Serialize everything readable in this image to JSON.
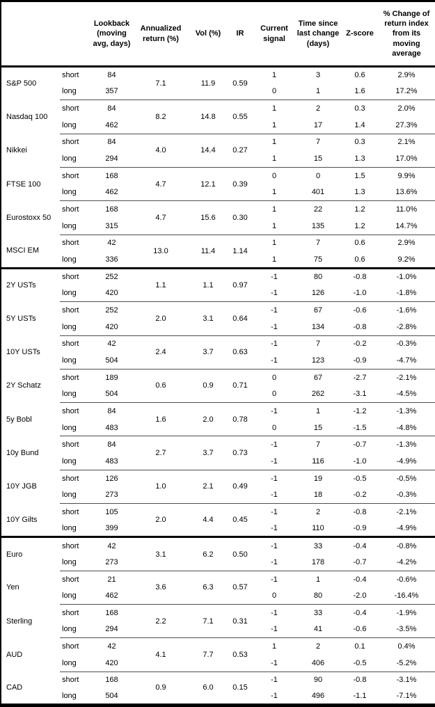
{
  "colors": {
    "text": "#000000",
    "background": "#ffffff",
    "border": "#000000",
    "row_separator": "#4d4d4d"
  },
  "table": {
    "columns": [
      {
        "key": "asset",
        "label": ""
      },
      {
        "key": "horizon",
        "label": ""
      },
      {
        "key": "lookback",
        "label": "Lookback\n(moving\navg, days)"
      },
      {
        "key": "ann_return",
        "label": "Annualized\nreturn (%)"
      },
      {
        "key": "vol",
        "label": "Vol (%)"
      },
      {
        "key": "ir",
        "label": "IR"
      },
      {
        "key": "signal",
        "label": "Current\nsignal"
      },
      {
        "key": "time_since",
        "label": "Time since\nlast change\n(days)"
      },
      {
        "key": "z_score",
        "label": "Z-score"
      },
      {
        "key": "pct_change",
        "label": "% Change of\nreturn index\nfrom its\nmoving\naverage"
      }
    ],
    "sections": [
      {
        "name": "equities",
        "groups": [
          {
            "asset": "S&P 500",
            "ann_return": "7.1",
            "vol": "11.9",
            "ir": "0.59",
            "rows": [
              {
                "horizon": "short",
                "lookback": "84",
                "signal": "1",
                "time_since": "3",
                "z_score": "0.6",
                "pct_change": "2.9%"
              },
              {
                "horizon": "long",
                "lookback": "357",
                "signal": "0",
                "time_since": "1",
                "z_score": "1.6",
                "pct_change": "17.2%"
              }
            ]
          },
          {
            "asset": "Nasdaq 100",
            "ann_return": "8.2",
            "vol": "14.8",
            "ir": "0.55",
            "rows": [
              {
                "horizon": "short",
                "lookback": "84",
                "signal": "1",
                "time_since": "2",
                "z_score": "0.3",
                "pct_change": "2.0%"
              },
              {
                "horizon": "long",
                "lookback": "462",
                "signal": "1",
                "time_since": "17",
                "z_score": "1.4",
                "pct_change": "27.3%"
              }
            ]
          },
          {
            "asset": "Nikkei",
            "ann_return": "4.0",
            "vol": "14.4",
            "ir": "0.27",
            "rows": [
              {
                "horizon": "short",
                "lookback": "84",
                "signal": "1",
                "time_since": "7",
                "z_score": "0.3",
                "pct_change": "2.1%"
              },
              {
                "horizon": "long",
                "lookback": "294",
                "signal": "1",
                "time_since": "15",
                "z_score": "1.3",
                "pct_change": "17.0%"
              }
            ]
          },
          {
            "asset": "FTSE 100",
            "ann_return": "4.7",
            "vol": "12.1",
            "ir": "0.39",
            "rows": [
              {
                "horizon": "short",
                "lookback": "168",
                "signal": "0",
                "time_since": "0",
                "z_score": "1.5",
                "pct_change": "9.9%"
              },
              {
                "horizon": "long",
                "lookback": "462",
                "signal": "1",
                "time_since": "401",
                "z_score": "1.3",
                "pct_change": "13.6%"
              }
            ]
          },
          {
            "asset": "Eurostoxx 50",
            "ann_return": "4.7",
            "vol": "15.6",
            "ir": "0.30",
            "rows": [
              {
                "horizon": "short",
                "lookback": "168",
                "signal": "1",
                "time_since": "22",
                "z_score": "1.2",
                "pct_change": "11.0%"
              },
              {
                "horizon": "long",
                "lookback": "315",
                "signal": "1",
                "time_since": "135",
                "z_score": "1.2",
                "pct_change": "14.7%"
              }
            ]
          },
          {
            "asset": "MSCI EM",
            "ann_return": "13.0",
            "vol": "11.4",
            "ir": "1.14",
            "rows": [
              {
                "horizon": "short",
                "lookback": "42",
                "signal": "1",
                "time_since": "7",
                "z_score": "0.6",
                "pct_change": "2.9%"
              },
              {
                "horizon": "long",
                "lookback": "336",
                "signal": "1",
                "time_since": "75",
                "z_score": "0.6",
                "pct_change": "9.2%"
              }
            ]
          }
        ]
      },
      {
        "name": "bonds",
        "groups": [
          {
            "asset": "2Y USTs",
            "ann_return": "1.1",
            "vol": "1.1",
            "ir": "0.97",
            "rows": [
              {
                "horizon": "short",
                "lookback": "252",
                "signal": "-1",
                "time_since": "80",
                "z_score": "-0.8",
                "pct_change": "-1.0%"
              },
              {
                "horizon": "long",
                "lookback": "420",
                "signal": "-1",
                "time_since": "126",
                "z_score": "-1.0",
                "pct_change": "-1.8%"
              }
            ]
          },
          {
            "asset": "5Y USTs",
            "ann_return": "2.0",
            "vol": "3.1",
            "ir": "0.64",
            "rows": [
              {
                "horizon": "short",
                "lookback": "252",
                "signal": "-1",
                "time_since": "67",
                "z_score": "-0.6",
                "pct_change": "-1.6%"
              },
              {
                "horizon": "long",
                "lookback": "420",
                "signal": "-1",
                "time_since": "134",
                "z_score": "-0.8",
                "pct_change": "-2.8%"
              }
            ]
          },
          {
            "asset": "10Y USTs",
            "ann_return": "2.4",
            "vol": "3.7",
            "ir": "0.63",
            "rows": [
              {
                "horizon": "short",
                "lookback": "42",
                "signal": "-1",
                "time_since": "7",
                "z_score": "-0.2",
                "pct_change": "-0.3%"
              },
              {
                "horizon": "long",
                "lookback": "504",
                "signal": "-1",
                "time_since": "123",
                "z_score": "-0.9",
                "pct_change": "-4.7%"
              }
            ]
          },
          {
            "asset": "2Y Schatz",
            "ann_return": "0.6",
            "vol": "0.9",
            "ir": "0.71",
            "rows": [
              {
                "horizon": "short",
                "lookback": "189",
                "signal": "0",
                "time_since": "67",
                "z_score": "-2.7",
                "pct_change": "-2.1%"
              },
              {
                "horizon": "long",
                "lookback": "504",
                "signal": "0",
                "time_since": "262",
                "z_score": "-3.1",
                "pct_change": "-4.5%"
              }
            ]
          },
          {
            "asset": "5y Bobl",
            "ann_return": "1.6",
            "vol": "2.0",
            "ir": "0.78",
            "rows": [
              {
                "horizon": "short",
                "lookback": "84",
                "signal": "-1",
                "time_since": "1",
                "z_score": "-1.2",
                "pct_change": "-1.3%"
              },
              {
                "horizon": "long",
                "lookback": "483",
                "signal": "0",
                "time_since": "15",
                "z_score": "-1.5",
                "pct_change": "-4.8%"
              }
            ]
          },
          {
            "asset": "10y Bund",
            "ann_return": "2.7",
            "vol": "3.7",
            "ir": "0.73",
            "rows": [
              {
                "horizon": "short",
                "lookback": "84",
                "signal": "-1",
                "time_since": "7",
                "z_score": "-0.7",
                "pct_change": "-1.3%"
              },
              {
                "horizon": "long",
                "lookback": "483",
                "signal": "-1",
                "time_since": "116",
                "z_score": "-1.0",
                "pct_change": "-4.9%"
              }
            ]
          },
          {
            "asset": "10Y JGB",
            "ann_return": "1.0",
            "vol": "2.1",
            "ir": "0.49",
            "rows": [
              {
                "horizon": "short",
                "lookback": "126",
                "signal": "-1",
                "time_since": "19",
                "z_score": "-0.5",
                "pct_change": "-0.5%"
              },
              {
                "horizon": "long",
                "lookback": "273",
                "signal": "-1",
                "time_since": "18",
                "z_score": "-0.2",
                "pct_change": "-0.3%"
              }
            ]
          },
          {
            "asset": "10Y Gilts",
            "ann_return": "2.0",
            "vol": "4.4",
            "ir": "0.45",
            "rows": [
              {
                "horizon": "short",
                "lookback": "105",
                "signal": "-1",
                "time_since": "2",
                "z_score": "-0.8",
                "pct_change": "-2.1%"
              },
              {
                "horizon": "long",
                "lookback": "399",
                "signal": "-1",
                "time_since": "110",
                "z_score": "-0.9",
                "pct_change": "-4.9%"
              }
            ]
          }
        ]
      },
      {
        "name": "currencies",
        "groups": [
          {
            "asset": "Euro",
            "ann_return": "3.1",
            "vol": "6.2",
            "ir": "0.50",
            "rows": [
              {
                "horizon": "short",
                "lookback": "42",
                "signal": "-1",
                "time_since": "33",
                "z_score": "-0.4",
                "pct_change": "-0.8%"
              },
              {
                "horizon": "long",
                "lookback": "273",
                "signal": "-1",
                "time_since": "178",
                "z_score": "-0.7",
                "pct_change": "-4.2%"
              }
            ]
          },
          {
            "asset": "Yen",
            "ann_return": "3.6",
            "vol": "6.3",
            "ir": "0.57",
            "rows": [
              {
                "horizon": "short",
                "lookback": "21",
                "signal": "-1",
                "time_since": "1",
                "z_score": "-0.4",
                "pct_change": "-0.6%"
              },
              {
                "horizon": "long",
                "lookback": "462",
                "signal": "0",
                "time_since": "80",
                "z_score": "-2.0",
                "pct_change": "-16.4%"
              }
            ]
          },
          {
            "asset": "Sterling",
            "ann_return": "2.2",
            "vol": "7.1",
            "ir": "0.31",
            "rows": [
              {
                "horizon": "short",
                "lookback": "168",
                "signal": "-1",
                "time_since": "33",
                "z_score": "-0.4",
                "pct_change": "-1.9%"
              },
              {
                "horizon": "long",
                "lookback": "294",
                "signal": "-1",
                "time_since": "41",
                "z_score": "-0.6",
                "pct_change": "-3.5%"
              }
            ]
          },
          {
            "asset": "AUD",
            "ann_return": "4.1",
            "vol": "7.7",
            "ir": "0.53",
            "rows": [
              {
                "horizon": "short",
                "lookback": "42",
                "signal": "1",
                "time_since": "2",
                "z_score": "0.1",
                "pct_change": "0.4%"
              },
              {
                "horizon": "long",
                "lookback": "420",
                "signal": "-1",
                "time_since": "406",
                "z_score": "-0.5",
                "pct_change": "-5.2%"
              }
            ]
          },
          {
            "asset": "CAD",
            "ann_return": "0.9",
            "vol": "6.0",
            "ir": "0.15",
            "rows": [
              {
                "horizon": "short",
                "lookback": "168",
                "signal": "-1",
                "time_since": "90",
                "z_score": "-0.8",
                "pct_change": "-3.1%"
              },
              {
                "horizon": "long",
                "lookback": "504",
                "signal": "-1",
                "time_since": "496",
                "z_score": "-1.1",
                "pct_change": "-7.1%"
              }
            ]
          }
        ]
      }
    ]
  }
}
